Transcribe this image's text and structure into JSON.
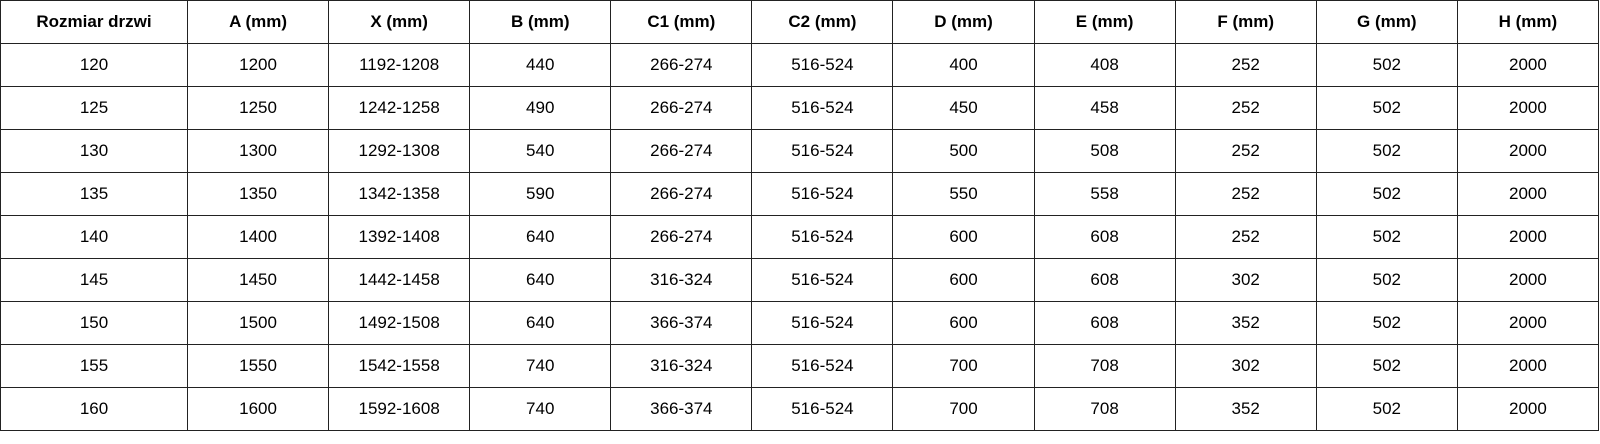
{
  "table": {
    "headers": [
      "Rozmiar drzwi",
      "A (mm)",
      "X (mm)",
      "B (mm)",
      "C1 (mm)",
      "C2 (mm)",
      "D (mm)",
      "E (mm)",
      "F (mm)",
      "G (mm)",
      "H (mm)"
    ],
    "rows": [
      [
        "120",
        "1200",
        "1192-1208",
        "440",
        "266-274",
        "516-524",
        "400",
        "408",
        "252",
        "502",
        "2000"
      ],
      [
        "125",
        "1250",
        "1242-1258",
        "490",
        "266-274",
        "516-524",
        "450",
        "458",
        "252",
        "502",
        "2000"
      ],
      [
        "130",
        "1300",
        "1292-1308",
        "540",
        "266-274",
        "516-524",
        "500",
        "508",
        "252",
        "502",
        "2000"
      ],
      [
        "135",
        "1350",
        "1342-1358",
        "590",
        "266-274",
        "516-524",
        "550",
        "558",
        "252",
        "502",
        "2000"
      ],
      [
        "140",
        "1400",
        "1392-1408",
        "640",
        "266-274",
        "516-524",
        "600",
        "608",
        "252",
        "502",
        "2000"
      ],
      [
        "145",
        "1450",
        "1442-1458",
        "640",
        "316-324",
        "516-524",
        "600",
        "608",
        "302",
        "502",
        "2000"
      ],
      [
        "150",
        "1500",
        "1492-1508",
        "640",
        "366-374",
        "516-524",
        "600",
        "608",
        "352",
        "502",
        "2000"
      ],
      [
        "155",
        "1550",
        "1542-1558",
        "740",
        "316-324",
        "516-524",
        "700",
        "708",
        "302",
        "502",
        "2000"
      ],
      [
        "160",
        "1600",
        "1592-1608",
        "740",
        "366-374",
        "516-524",
        "700",
        "708",
        "352",
        "502",
        "2000"
      ]
    ]
  }
}
